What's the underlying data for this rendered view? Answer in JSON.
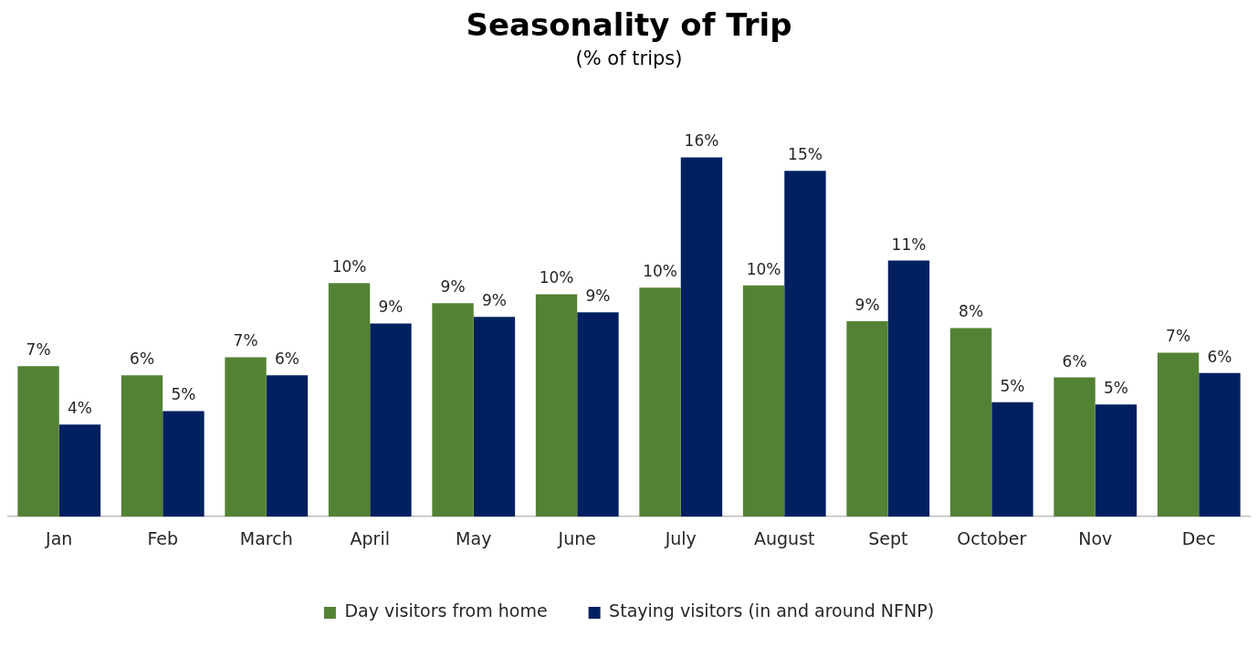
{
  "chart_data": {
    "type": "bar",
    "title": "Seasonality of Trip",
    "subtitle": "(% of trips)",
    "categories": [
      "Jan",
      "Feb",
      "March",
      "April",
      "May",
      "June",
      "July",
      "August",
      "Sept",
      "October",
      "Nov",
      "Dec"
    ],
    "series": [
      {
        "name": "Day visitors from home",
        "color": "#548235",
        "values": [
          6.7,
          6.3,
          7.1,
          10.4,
          9.5,
          9.9,
          10.2,
          10.3,
          8.7,
          8.4,
          6.2,
          7.3
        ],
        "value_labels": [
          "7%",
          "6%",
          "7%",
          "10%",
          "9%",
          "10%",
          "10%",
          "10%",
          "9%",
          "8%",
          "6%",
          "7%"
        ]
      },
      {
        "name": "Staying visitors (in and around NFNP)",
        "color": "#002060",
        "values": [
          4.1,
          4.7,
          6.3,
          8.6,
          8.9,
          9.1,
          16,
          15.4,
          11.4,
          5.1,
          5,
          6.4
        ],
        "value_labels": [
          "4%",
          "5%",
          "6%",
          "9%",
          "9%",
          "9%",
          "16%",
          "15%",
          "11%",
          "5%",
          "5%",
          "6%"
        ]
      }
    ],
    "legend": "bottom",
    "grid": false
  }
}
